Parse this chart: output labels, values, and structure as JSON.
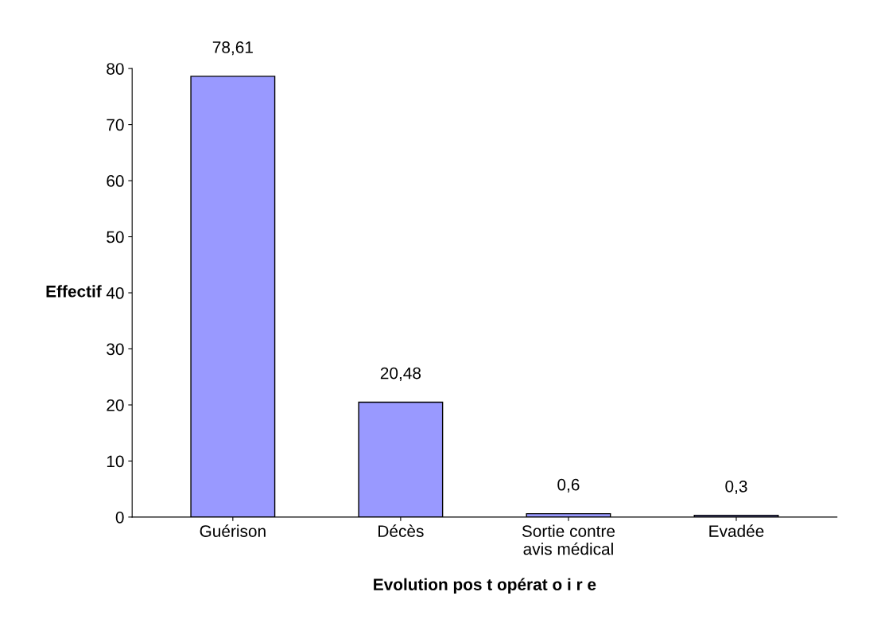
{
  "chart_data": {
    "type": "bar",
    "xlabel": "Evolution pos t opérat o i r e",
    "ylabel": "Effectif",
    "categories": [
      "Guérison",
      "Décès",
      "Sortie contre\navis médical",
      "Evadée"
    ],
    "values": [
      78.61,
      20.48,
      0.6,
      0.3
    ],
    "value_labels": [
      "78,61",
      "20,48",
      "0,6",
      "0,3"
    ],
    "color": "#9999ff",
    "ylim": [
      0,
      80
    ],
    "yticks": [
      0,
      10,
      20,
      30,
      40,
      50,
      60,
      70,
      80
    ],
    "grid": false
  }
}
